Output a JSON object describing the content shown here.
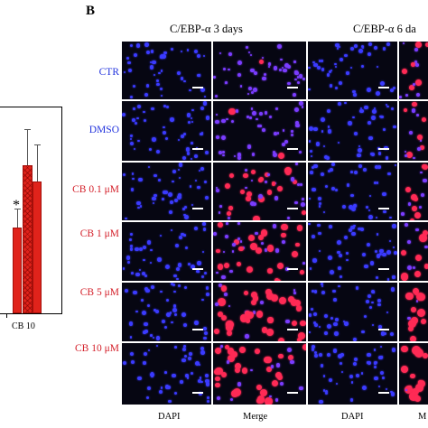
{
  "panel_a": {
    "group_label": "CB 10",
    "significance": "*",
    "colors": {
      "bar": "#e0231b",
      "error": "#555555"
    }
  },
  "panel_b": {
    "letter": "B",
    "columns": [
      "C/EBP-α 3 days",
      "C/EBP-α 6 da"
    ],
    "rows": [
      {
        "label": "CTR",
        "color": "#2233dd",
        "red_level": 0.05
      },
      {
        "label": "DMSO",
        "color": "#2233dd",
        "red_level": 0.08
      },
      {
        "label": "CB 0.1 μM",
        "color": "#d4202a",
        "red_level": 0.3
      },
      {
        "label": "CB 1 μM",
        "color": "#d4202a",
        "red_level": 0.5
      },
      {
        "label": "CB 5 μM",
        "color": "#d4202a",
        "red_level": 0.65
      },
      {
        "label": "CB 10 μM",
        "color": "#d4202a",
        "red_level": 0.75
      }
    ],
    "footer": [
      "DAPI",
      "Merge",
      "DAPI",
      "M"
    ]
  }
}
